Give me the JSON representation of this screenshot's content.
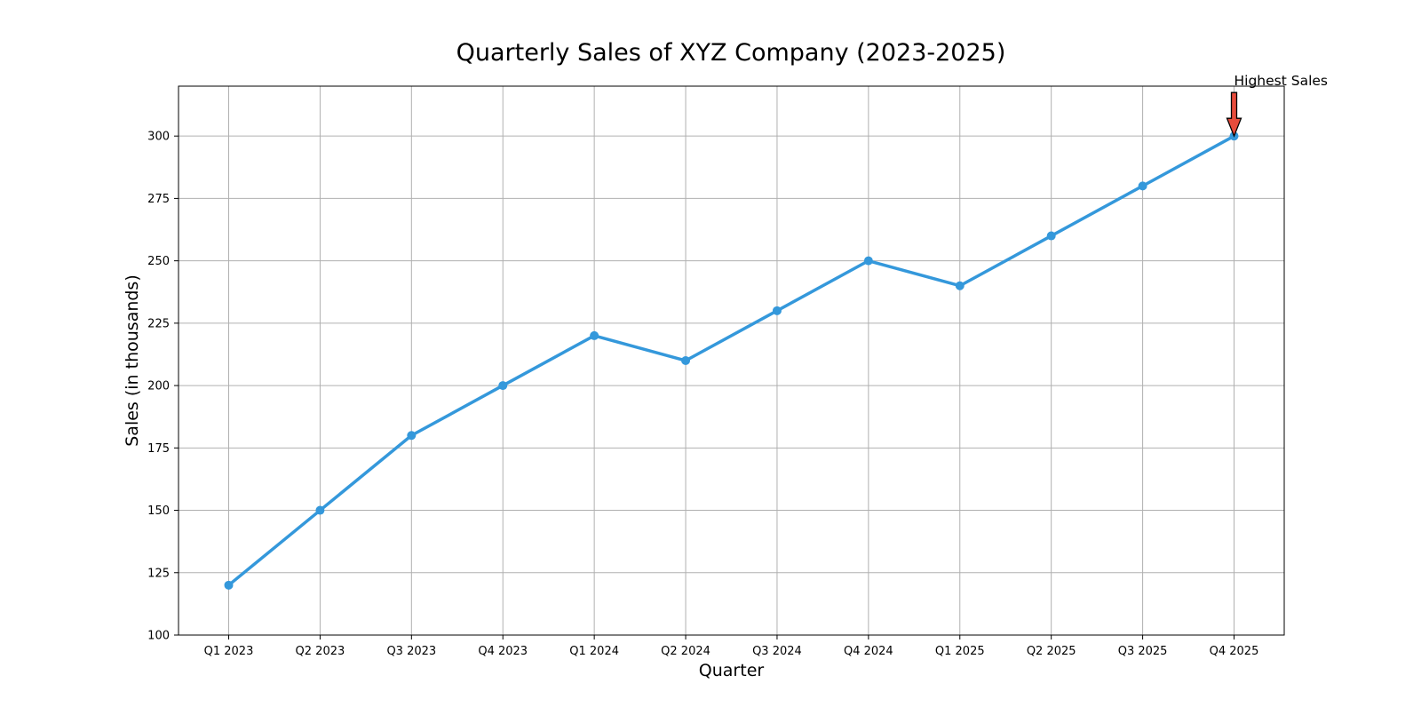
{
  "chart_data": {
    "type": "line",
    "title": "Quarterly Sales of XYZ Company (2023-2025)",
    "xlabel": "Quarter",
    "ylabel": "Sales (in thousands)",
    "categories": [
      "Q1 2023",
      "Q2 2023",
      "Q3 2023",
      "Q4 2023",
      "Q1 2024",
      "Q2 2024",
      "Q3 2024",
      "Q4 2024",
      "Q1 2025",
      "Q2 2025",
      "Q3 2025",
      "Q4 2025"
    ],
    "series": [
      {
        "values": [
          120,
          150,
          180,
          200,
          220,
          210,
          230,
          250,
          240,
          260,
          280,
          300
        ],
        "color": "#3498db"
      }
    ],
    "ylim": [
      100,
      320
    ],
    "yticks": [
      100,
      125,
      150,
      175,
      200,
      225,
      250,
      275,
      300
    ],
    "grid": true,
    "annotations": [
      {
        "text": "Highest Sales",
        "x": "Q4 2025",
        "y": 300,
        "arrow_color": "#e74c3c"
      }
    ]
  }
}
